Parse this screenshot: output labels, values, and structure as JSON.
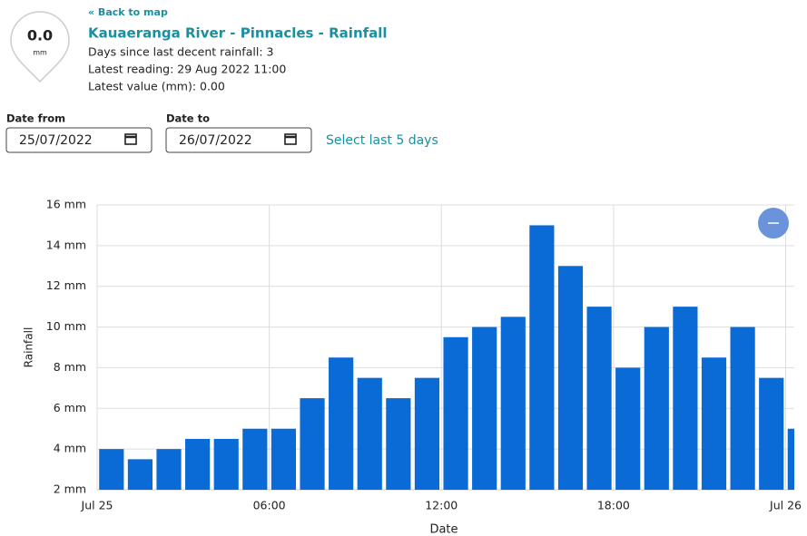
{
  "gauge": {
    "value": "0.0",
    "unit": "mm"
  },
  "header": {
    "back_link": "« Back to map",
    "title": "Kauaeranga River - Pinnacles - Rainfall",
    "lines": [
      "Days since last decent rainfall: 3",
      "Latest reading: 29 Aug 2022 11:00",
      "Latest value (mm): 0.00"
    ]
  },
  "filters": {
    "date_from_label": "Date from",
    "date_from": "25/07/2022",
    "date_to_label": "Date to",
    "date_to": "26/07/2022",
    "select_link": "Select last 5 days"
  },
  "chart_data": {
    "type": "bar",
    "xlabel": "Date",
    "ylabel": "Rainfall",
    "color": "#0a6ad6",
    "grid": true,
    "x": [
      0,
      1,
      2,
      3,
      4,
      5,
      6,
      7,
      8,
      9,
      10,
      11,
      12,
      13,
      14,
      15,
      16,
      17,
      18,
      19,
      20,
      21,
      22,
      23,
      24
    ],
    "values": [
      4,
      3.5,
      4,
      4.5,
      4.5,
      5,
      5,
      6.5,
      8.5,
      7.5,
      6.5,
      7.5,
      9.5,
      10,
      10.5,
      15,
      13,
      11,
      8,
      10,
      11,
      8.5,
      10,
      7.5,
      5
    ],
    "xlim": [
      0,
      24.3
    ],
    "xticks": [
      {
        "value": 0,
        "label": "Jul 25"
      },
      {
        "value": 6,
        "label": "06:00"
      },
      {
        "value": 12,
        "label": "12:00"
      },
      {
        "value": 18,
        "label": "18:00"
      },
      {
        "value": 24,
        "label": "Jul 26"
      }
    ],
    "ylim": [
      2,
      16
    ],
    "yticks": [
      {
        "value": 2,
        "label": "2 mm"
      },
      {
        "value": 4,
        "label": "4 mm"
      },
      {
        "value": 6,
        "label": "6 mm"
      },
      {
        "value": 8,
        "label": "8 mm"
      },
      {
        "value": 10,
        "label": "10 mm"
      },
      {
        "value": 12,
        "label": "12 mm"
      },
      {
        "value": 14,
        "label": "14 mm"
      },
      {
        "value": 16,
        "label": "16 mm"
      }
    ]
  }
}
